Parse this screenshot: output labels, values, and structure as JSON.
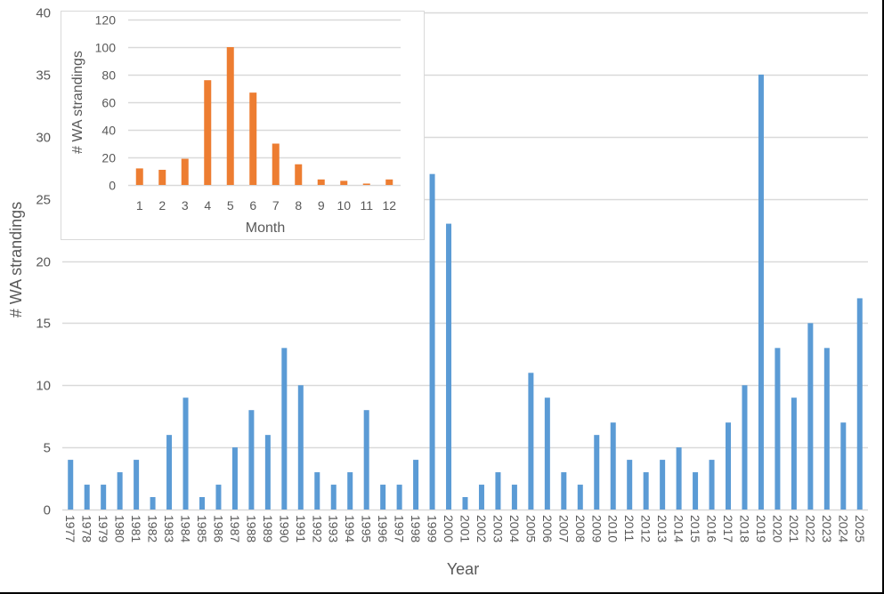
{
  "chart_data": [
    {
      "type": "bar",
      "title": "",
      "xlabel": "Year",
      "ylabel": "# WA strandings",
      "ylim": [
        0,
        40
      ],
      "yticks": [
        0,
        5,
        10,
        15,
        20,
        25,
        30,
        35,
        40
      ],
      "grid": true,
      "legend": null,
      "color": "#5B9BD5",
      "categories": [
        "1977",
        "1978",
        "1979",
        "1980",
        "1981",
        "1982",
        "1983",
        "1984",
        "1985",
        "1986",
        "1987",
        "1988",
        "1989",
        "1990",
        "1991",
        "1992",
        "1993",
        "1994",
        "1995",
        "1996",
        "1997",
        "1998",
        "1999",
        "2000",
        "2001",
        "2002",
        "2003",
        "2004",
        "2005",
        "2006",
        "2007",
        "2008",
        "2009",
        "2010",
        "2011",
        "2012",
        "2013",
        "2014",
        "2015",
        "2016",
        "2017",
        "2018",
        "2019",
        "2020",
        "2021",
        "2022",
        "2023",
        "2024",
        "2025"
      ],
      "values": [
        4,
        2,
        2,
        3,
        4,
        1,
        6,
        9,
        1,
        2,
        5,
        8,
        6,
        13,
        10,
        3,
        2,
        3,
        8,
        2,
        2,
        4,
        27,
        23,
        1,
        2,
        3,
        2,
        11,
        9,
        3,
        2,
        6,
        7,
        4,
        3,
        4,
        5,
        3,
        4,
        7,
        10,
        35,
        13,
        9,
        15,
        13,
        7,
        17
      ]
    },
    {
      "type": "bar",
      "title": "",
      "position": "inset-top-left",
      "xlabel": "Month",
      "ylabel": "# WA strandings",
      "ylim": [
        0,
        120
      ],
      "yticks": [
        0,
        20,
        40,
        60,
        80,
        100,
        120
      ],
      "grid": true,
      "legend": null,
      "color": "#ED7D31",
      "categories": [
        "1",
        "2",
        "3",
        "4",
        "5",
        "6",
        "7",
        "8",
        "9",
        "10",
        "11",
        "12"
      ],
      "values": [
        12,
        11,
        19,
        76,
        100,
        67,
        30,
        15,
        4,
        3,
        1,
        4
      ]
    }
  ],
  "labels": {
    "main_xlabel": "Year",
    "main_ylabel": "# WA strandings",
    "inset_xlabel": "Month",
    "inset_ylabel": "# WA strandings"
  }
}
